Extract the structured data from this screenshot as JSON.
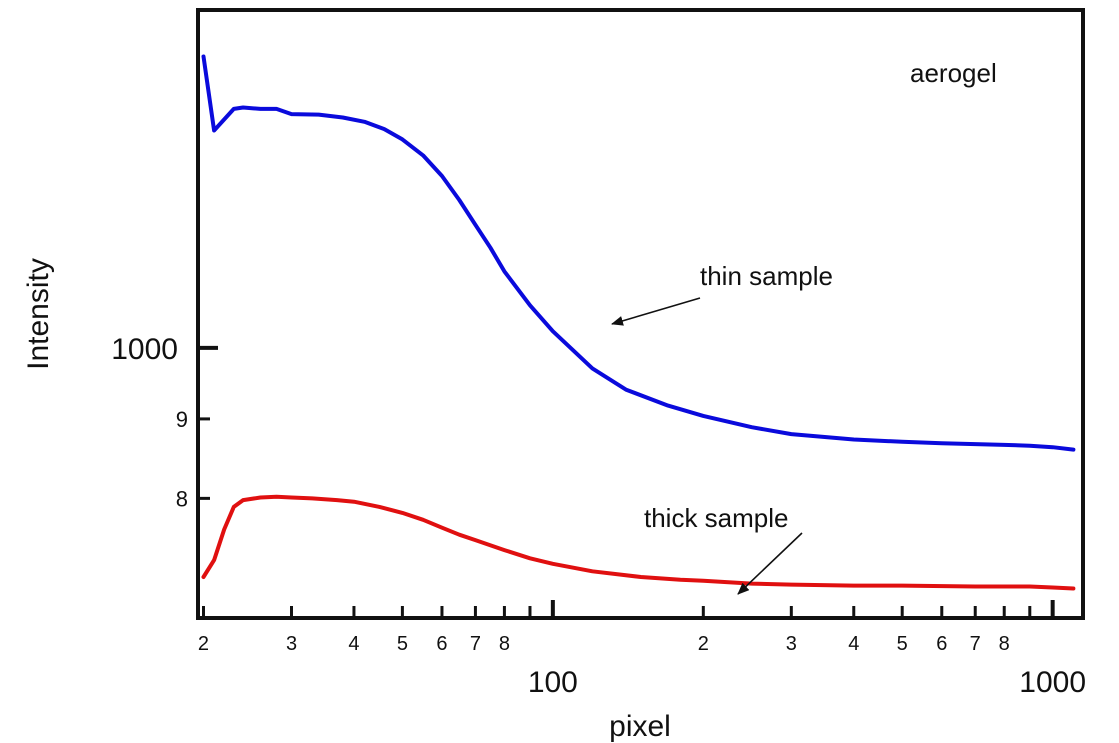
{
  "chart_data": {
    "type": "line",
    "title": "",
    "xlabel": "pixel",
    "ylabel": "Intensity",
    "x_scale": "log",
    "y_scale": "log",
    "xlim": [
      19.5,
      1150
    ],
    "ylim": [
      670,
      1650
    ],
    "grid": false,
    "legend": "none",
    "x_major_ticks": [
      {
        "value": 100,
        "label": "100"
      },
      {
        "value": 1000,
        "label": "1000"
      }
    ],
    "x_minor_ticks": [
      {
        "value": 20,
        "label": "2"
      },
      {
        "value": 30,
        "label": "3"
      },
      {
        "value": 40,
        "label": "4"
      },
      {
        "value": 50,
        "label": "5"
      },
      {
        "value": 60,
        "label": "6"
      },
      {
        "value": 70,
        "label": "7"
      },
      {
        "value": 80,
        "label": "8"
      },
      {
        "value": 90,
        "label": ""
      },
      {
        "value": 200,
        "label": "2"
      },
      {
        "value": 300,
        "label": "3"
      },
      {
        "value": 400,
        "label": "4"
      },
      {
        "value": 500,
        "label": "5"
      },
      {
        "value": 600,
        "label": "6"
      },
      {
        "value": 700,
        "label": "7"
      },
      {
        "value": 800,
        "label": "8"
      },
      {
        "value": 900,
        "label": ""
      }
    ],
    "y_major_ticks": [
      {
        "value": 1000,
        "label": "1000"
      }
    ],
    "y_minor_ticks": [
      {
        "value": 900,
        "label": "9"
      },
      {
        "value": 800,
        "label": "8"
      }
    ],
    "series": [
      {
        "color": "#0a0adc",
        "points": [
          [
            20,
            1540
          ],
          [
            21,
            1380
          ],
          [
            23,
            1425
          ],
          [
            24,
            1428
          ],
          [
            26,
            1425
          ],
          [
            28,
            1425
          ],
          [
            30,
            1414
          ],
          [
            34,
            1413
          ],
          [
            38,
            1407
          ],
          [
            42,
            1398
          ],
          [
            46,
            1383
          ],
          [
            50,
            1362
          ],
          [
            55,
            1330
          ],
          [
            60,
            1290
          ],
          [
            65,
            1245
          ],
          [
            70,
            1200
          ],
          [
            75,
            1160
          ],
          [
            80,
            1120
          ],
          [
            90,
            1065
          ],
          [
            100,
            1025
          ],
          [
            120,
            970
          ],
          [
            140,
            940
          ],
          [
            170,
            918
          ],
          [
            200,
            904
          ],
          [
            250,
            889
          ],
          [
            300,
            880
          ],
          [
            400,
            873
          ],
          [
            500,
            870
          ],
          [
            600,
            868
          ],
          [
            700,
            867
          ],
          [
            800,
            866
          ],
          [
            900,
            865
          ],
          [
            1000,
            863
          ],
          [
            1100,
            860
          ]
        ]
      },
      {
        "color": "#e01010",
        "points": [
          [
            20,
            712
          ],
          [
            21,
            730
          ],
          [
            22,
            764
          ],
          [
            23,
            790
          ],
          [
            24,
            798
          ],
          [
            26,
            801
          ],
          [
            28,
            802
          ],
          [
            30,
            801
          ],
          [
            33,
            800
          ],
          [
            37,
            798
          ],
          [
            40,
            796
          ],
          [
            45,
            790
          ],
          [
            50,
            783
          ],
          [
            55,
            775
          ],
          [
            60,
            766
          ],
          [
            65,
            758
          ],
          [
            70,
            752
          ],
          [
            80,
            741
          ],
          [
            90,
            732
          ],
          [
            100,
            726
          ],
          [
            120,
            718
          ],
          [
            150,
            712
          ],
          [
            180,
            709
          ],
          [
            200,
            708
          ],
          [
            250,
            705
          ],
          [
            300,
            704
          ],
          [
            400,
            703
          ],
          [
            500,
            703
          ],
          [
            700,
            702
          ],
          [
            900,
            702
          ],
          [
            1000,
            701
          ],
          [
            1100,
            700
          ]
        ]
      }
    ],
    "annotations": [
      {
        "text": "aerogel"
      },
      {
        "text": "thin sample",
        "x": 125,
        "y": 980
      },
      {
        "text": "thick sample",
        "x": 235,
        "y": 708
      }
    ]
  }
}
